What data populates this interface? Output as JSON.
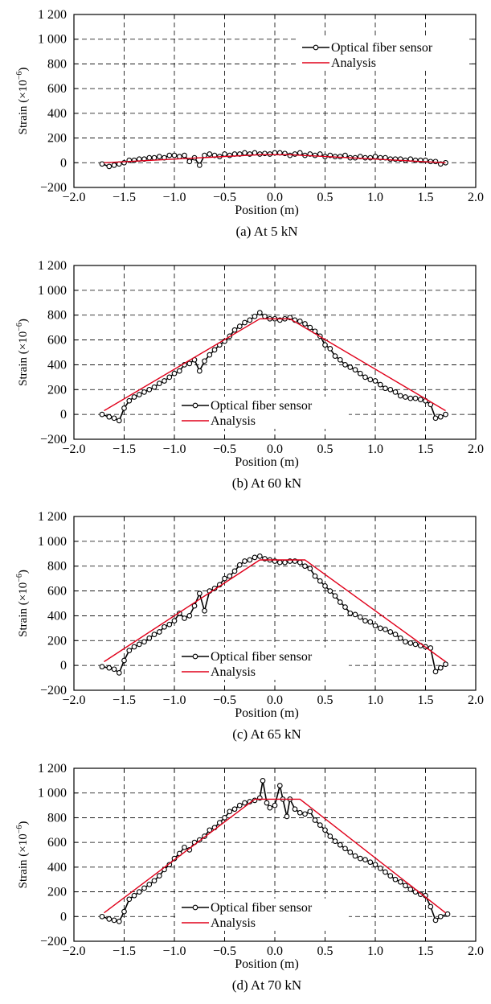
{
  "chart_data": [
    {
      "type": "line",
      "caption": "(a) At 5 kN",
      "xlabel": "Position (m)",
      "ylabel": "Strain (×10",
      "ylabel_sup": "−6",
      "ylabel_close": ")",
      "xlim": [
        -2.0,
        2.0
      ],
      "ylim": [
        -200,
        1200
      ],
      "xticks": [
        "−2.0",
        "−1.5",
        "−1.0",
        "−0.5",
        "0.0",
        "0.5",
        "1.0",
        "1.5",
        "2.0"
      ],
      "yticks": [
        "−200",
        "0",
        "200",
        "400",
        "600",
        "800",
        "1 000",
        "1 200"
      ],
      "grid": true,
      "legend_position": "top-right",
      "series": [
        {
          "name": "Optical fiber sensor",
          "color": "#000000",
          "marker": "open-circle",
          "x": [
            -1.72,
            -1.65,
            -1.6,
            -1.55,
            -1.5,
            -1.45,
            -1.4,
            -1.35,
            -1.3,
            -1.25,
            -1.2,
            -1.15,
            -1.1,
            -1.05,
            -1.0,
            -0.95,
            -0.9,
            -0.85,
            -0.8,
            -0.75,
            -0.7,
            -0.65,
            -0.6,
            -0.55,
            -0.5,
            -0.45,
            -0.4,
            -0.35,
            -0.3,
            -0.25,
            -0.2,
            -0.15,
            -0.1,
            -0.05,
            0.0,
            0.05,
            0.1,
            0.15,
            0.2,
            0.25,
            0.3,
            0.35,
            0.4,
            0.45,
            0.5,
            0.55,
            0.6,
            0.65,
            0.7,
            0.75,
            0.8,
            0.85,
            0.9,
            0.95,
            1.0,
            1.05,
            1.1,
            1.15,
            1.2,
            1.25,
            1.3,
            1.35,
            1.4,
            1.45,
            1.5,
            1.55,
            1.6,
            1.65,
            1.7
          ],
          "y": [
            -10,
            -30,
            -20,
            -10,
            0,
            20,
            20,
            30,
            30,
            40,
            40,
            50,
            40,
            60,
            60,
            50,
            60,
            10,
            40,
            -20,
            60,
            70,
            60,
            50,
            70,
            60,
            70,
            70,
            80,
            70,
            80,
            70,
            75,
            70,
            80,
            80,
            75,
            60,
            70,
            80,
            60,
            70,
            60,
            70,
            50,
            60,
            50,
            50,
            60,
            40,
            40,
            50,
            40,
            40,
            50,
            40,
            40,
            30,
            30,
            30,
            20,
            30,
            20,
            20,
            20,
            10,
            10,
            -10,
            0
          ]
        },
        {
          "name": "Analysis",
          "color": "#e0001a",
          "marker": "none",
          "x": [
            -1.7,
            -0.15,
            0.15,
            1.7
          ],
          "y": [
            0,
            65,
            65,
            0
          ]
        }
      ]
    },
    {
      "type": "line",
      "caption": "(b) At 60 kN",
      "xlabel": "Position (m)",
      "ylabel": "Strain (×10",
      "ylabel_sup": "−6",
      "ylabel_close": ")",
      "xlim": [
        -2.0,
        2.0
      ],
      "ylim": [
        -200,
        1200
      ],
      "xticks": [
        "−2.0",
        "−1.5",
        "−1.0",
        "−0.5",
        "0.0",
        "0.5",
        "1.0",
        "1.5",
        "2.0"
      ],
      "yticks": [
        "−200",
        "0",
        "200",
        "400",
        "600",
        "800",
        "1 000",
        "1 200"
      ],
      "grid": true,
      "legend_position": "bottom-center",
      "series": [
        {
          "name": "Optical fiber sensor",
          "color": "#000000",
          "marker": "open-circle",
          "x": [
            -1.72,
            -1.65,
            -1.6,
            -1.55,
            -1.5,
            -1.45,
            -1.4,
            -1.35,
            -1.3,
            -1.25,
            -1.2,
            -1.15,
            -1.1,
            -1.05,
            -1.0,
            -0.95,
            -0.9,
            -0.85,
            -0.8,
            -0.75,
            -0.7,
            -0.65,
            -0.6,
            -0.55,
            -0.5,
            -0.45,
            -0.4,
            -0.35,
            -0.3,
            -0.25,
            -0.2,
            -0.15,
            -0.1,
            -0.05,
            0.0,
            0.05,
            0.1,
            0.15,
            0.2,
            0.25,
            0.3,
            0.35,
            0.4,
            0.45,
            0.5,
            0.55,
            0.6,
            0.65,
            0.7,
            0.75,
            0.8,
            0.85,
            0.9,
            0.95,
            1.0,
            1.05,
            1.1,
            1.15,
            1.2,
            1.25,
            1.3,
            1.35,
            1.4,
            1.45,
            1.5,
            1.55,
            1.6,
            1.65,
            1.7
          ],
          "y": [
            0,
            -20,
            -30,
            -50,
            50,
            110,
            140,
            160,
            180,
            200,
            220,
            250,
            270,
            300,
            330,
            350,
            400,
            410,
            440,
            350,
            430,
            480,
            520,
            560,
            590,
            630,
            680,
            710,
            740,
            760,
            790,
            820,
            790,
            770,
            770,
            760,
            770,
            780,
            760,
            750,
            730,
            700,
            670,
            630,
            560,
            530,
            470,
            440,
            400,
            380,
            360,
            330,
            300,
            280,
            270,
            240,
            210,
            200,
            180,
            150,
            140,
            130,
            130,
            120,
            110,
            80,
            -30,
            -20,
            0
          ]
        },
        {
          "name": "Analysis",
          "color": "#e0001a",
          "marker": "none",
          "x": [
            -1.7,
            -0.15,
            0.15,
            1.7
          ],
          "y": [
            30,
            770,
            770,
            30
          ]
        }
      ]
    },
    {
      "type": "line",
      "caption": "(c) At 65 kN",
      "xlabel": "Position (m)",
      "ylabel": "Strain (×10",
      "ylabel_sup": "−6",
      "ylabel_close": ")",
      "xlim": [
        -2.0,
        2.0
      ],
      "ylim": [
        -200,
        1200
      ],
      "xticks": [
        "−2.0",
        "−1.5",
        "−1.0",
        "−0.5",
        "0.0",
        "0.5",
        "1.0",
        "1.5",
        "2.0"
      ],
      "yticks": [
        "−200",
        "0",
        "200",
        "400",
        "600",
        "800",
        "1 000",
        "1 200"
      ],
      "grid": true,
      "legend_position": "bottom-center",
      "series": [
        {
          "name": "Optical fiber sensor",
          "color": "#000000",
          "marker": "open-circle",
          "x": [
            -1.72,
            -1.65,
            -1.6,
            -1.55,
            -1.5,
            -1.45,
            -1.4,
            -1.35,
            -1.3,
            -1.25,
            -1.2,
            -1.15,
            -1.1,
            -1.05,
            -1.0,
            -0.95,
            -0.9,
            -0.85,
            -0.8,
            -0.75,
            -0.7,
            -0.65,
            -0.6,
            -0.55,
            -0.5,
            -0.45,
            -0.4,
            -0.35,
            -0.3,
            -0.25,
            -0.2,
            -0.15,
            -0.1,
            -0.05,
            0.0,
            0.05,
            0.1,
            0.15,
            0.2,
            0.25,
            0.3,
            0.35,
            0.4,
            0.45,
            0.5,
            0.55,
            0.6,
            0.65,
            0.7,
            0.75,
            0.8,
            0.85,
            0.9,
            0.95,
            1.0,
            1.05,
            1.1,
            1.15,
            1.2,
            1.25,
            1.3,
            1.35,
            1.4,
            1.45,
            1.5,
            1.55,
            1.6,
            1.65,
            1.7
          ],
          "y": [
            -10,
            -20,
            -30,
            -60,
            40,
            120,
            150,
            170,
            190,
            220,
            250,
            270,
            310,
            330,
            360,
            420,
            380,
            400,
            480,
            580,
            440,
            600,
            620,
            650,
            700,
            720,
            760,
            810,
            840,
            850,
            870,
            880,
            860,
            850,
            840,
            830,
            830,
            840,
            840,
            830,
            800,
            780,
            720,
            680,
            640,
            600,
            560,
            510,
            470,
            420,
            410,
            390,
            360,
            350,
            320,
            300,
            290,
            270,
            250,
            220,
            190,
            180,
            170,
            160,
            150,
            140,
            -50,
            -20,
            10
          ]
        },
        {
          "name": "Analysis",
          "color": "#e0001a",
          "marker": "none",
          "x": [
            -1.7,
            -0.15,
            0.3,
            1.7
          ],
          "y": [
            30,
            850,
            850,
            30
          ]
        }
      ]
    },
    {
      "type": "line",
      "caption": "(d) At 70 kN",
      "xlabel": "Position (m)",
      "ylabel": "Strain (×10",
      "ylabel_sup": "−6",
      "ylabel_close": ")",
      "xlim": [
        -2.0,
        2.0
      ],
      "ylim": [
        -200,
        1200
      ],
      "xticks": [
        "−2.0",
        "−1.5",
        "−1.0",
        "−0.5",
        "0.0",
        "0.5",
        "1.0",
        "1.5",
        "2.0"
      ],
      "yticks": [
        "−200",
        "0",
        "200",
        "400",
        "600",
        "800",
        "1 000",
        "1 200"
      ],
      "grid": true,
      "legend_position": "bottom-center",
      "series": [
        {
          "name": "Optical fiber sensor",
          "color": "#000000",
          "marker": "open-circle",
          "x": [
            -1.72,
            -1.65,
            -1.6,
            -1.55,
            -1.5,
            -1.45,
            -1.4,
            -1.35,
            -1.3,
            -1.25,
            -1.2,
            -1.15,
            -1.1,
            -1.05,
            -1.0,
            -0.95,
            -0.9,
            -0.85,
            -0.8,
            -0.75,
            -0.7,
            -0.65,
            -0.6,
            -0.55,
            -0.5,
            -0.45,
            -0.4,
            -0.35,
            -0.3,
            -0.25,
            -0.2,
            -0.15,
            -0.12,
            -0.08,
            -0.05,
            0.0,
            0.05,
            0.08,
            0.12,
            0.15,
            0.2,
            0.25,
            0.3,
            0.35,
            0.4,
            0.45,
            0.5,
            0.55,
            0.6,
            0.65,
            0.7,
            0.75,
            0.8,
            0.85,
            0.9,
            0.95,
            1.0,
            1.05,
            1.1,
            1.15,
            1.2,
            1.25,
            1.3,
            1.35,
            1.4,
            1.45,
            1.5,
            1.55,
            1.6,
            1.65,
            1.72
          ],
          "y": [
            0,
            -20,
            -30,
            -40,
            40,
            140,
            170,
            200,
            230,
            260,
            290,
            330,
            380,
            420,
            470,
            510,
            560,
            540,
            600,
            620,
            650,
            700,
            720,
            760,
            800,
            850,
            870,
            900,
            920,
            930,
            940,
            960,
            1100,
            920,
            880,
            900,
            1060,
            950,
            810,
            950,
            870,
            840,
            830,
            850,
            780,
            740,
            700,
            650,
            610,
            580,
            550,
            520,
            490,
            470,
            460,
            440,
            420,
            390,
            360,
            330,
            300,
            280,
            250,
            220,
            200,
            180,
            170,
            80,
            -30,
            0,
            20
          ]
        },
        {
          "name": "Analysis",
          "color": "#e0001a",
          "marker": "none",
          "x": [
            -1.7,
            -0.2,
            0.25,
            1.7
          ],
          "y": [
            30,
            950,
            950,
            30
          ]
        }
      ]
    }
  ]
}
